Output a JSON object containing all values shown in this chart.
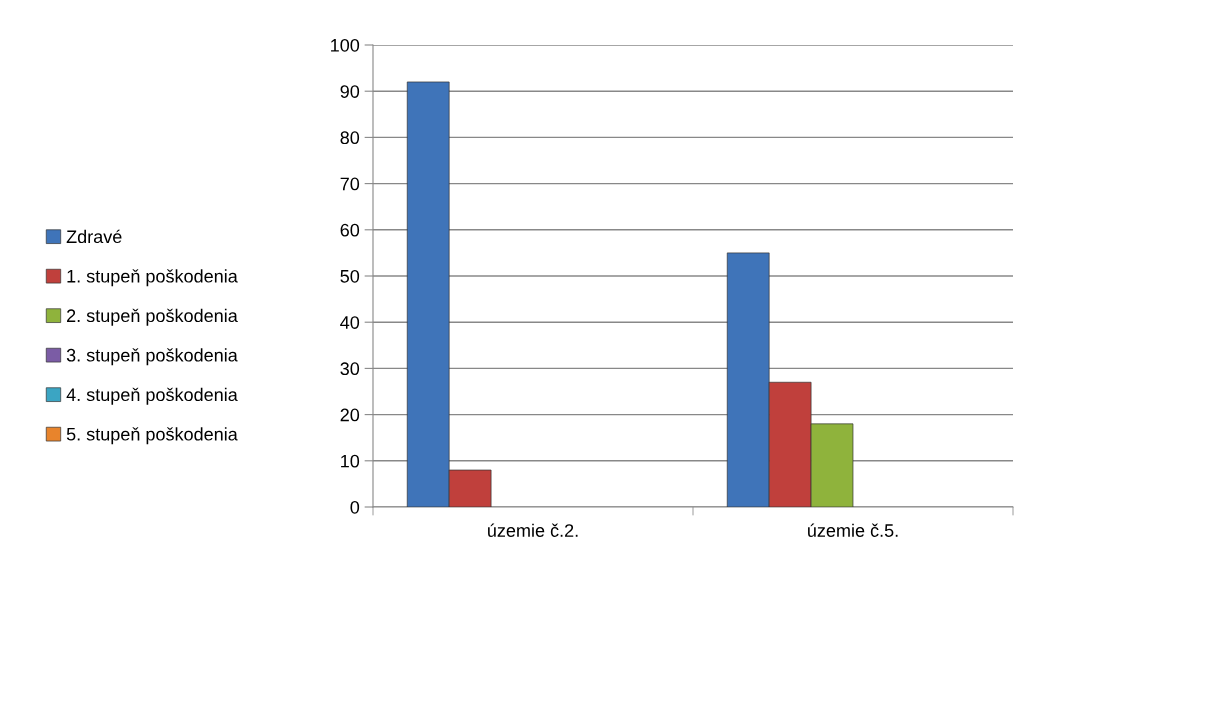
{
  "chart_data": {
    "type": "bar",
    "categories": [
      "územie č.2.",
      "územie č.5."
    ],
    "series": [
      {
        "name": "Zdravé",
        "color": "#3f74b9",
        "values": [
          92,
          55
        ]
      },
      {
        "name": "1. stupeň poškodenia",
        "color": "#c0403c",
        "values": [
          8,
          27
        ]
      },
      {
        "name": "2. stupeň poškodenia",
        "color": "#8fb33c",
        "values": [
          0,
          18
        ]
      },
      {
        "name": "3. stupeň poškodenia",
        "color": "#7b5ca5",
        "values": [
          0,
          0
        ]
      },
      {
        "name": "4. stupeň poškodenia",
        "color": "#3ba5c3",
        "values": [
          0,
          0
        ]
      },
      {
        "name": "5. stupeň poškodenia",
        "color": "#e8842c",
        "values": [
          0,
          0
        ]
      }
    ],
    "ylim": [
      0,
      100
    ],
    "yticks": [
      0,
      10,
      20,
      30,
      40,
      50,
      60,
      70,
      80,
      90,
      100
    ],
    "grid": "y",
    "legend": "left"
  }
}
